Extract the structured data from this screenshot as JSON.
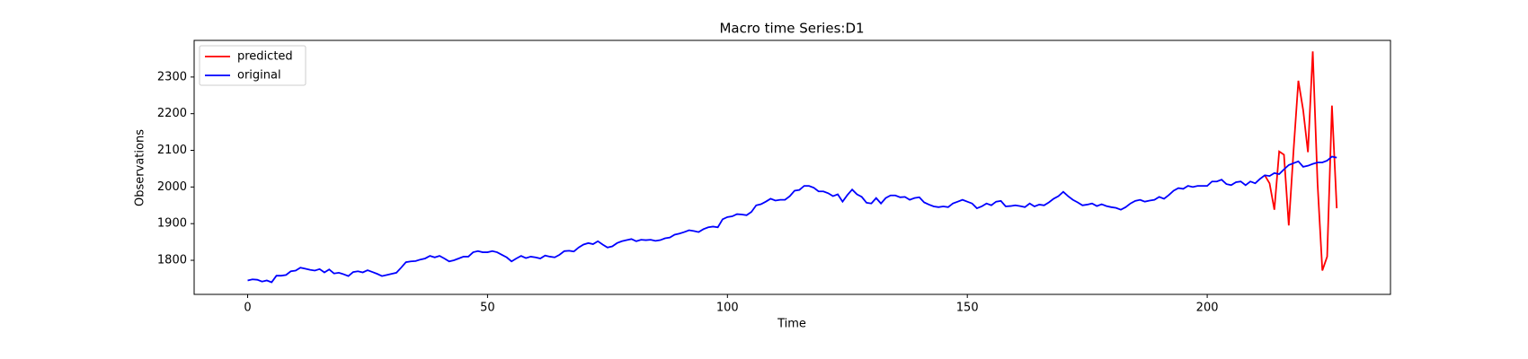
{
  "chart_data": {
    "type": "line",
    "title": "Macro time Series:D1",
    "xlabel": "Time",
    "ylabel": "Observations",
    "xlim": [
      -11.15,
      238.2
    ],
    "ylim": [
      1707,
      2400
    ],
    "xticks": [
      0,
      50,
      100,
      150,
      200
    ],
    "yticks": [
      1800,
      1900,
      2000,
      2100,
      2200,
      2300
    ],
    "legend": "upper left",
    "series": [
      {
        "name": "predicted",
        "color": "#ff0000",
        "x": [
          212,
          213,
          214,
          215,
          216,
          217,
          218,
          219,
          220,
          221,
          222,
          223,
          224,
          225,
          226,
          227
        ],
        "values": [
          2032,
          2010,
          1938,
          2097,
          2088,
          1895,
          2100,
          2290,
          2210,
          2095,
          2370,
          2010,
          1772,
          1810,
          2222,
          1942
        ]
      },
      {
        "name": "original",
        "color": "#0000ff",
        "x": [
          0,
          1,
          2,
          3,
          4,
          5,
          6,
          7,
          8,
          9,
          10,
          11,
          12,
          13,
          14,
          15,
          16,
          17,
          18,
          19,
          20,
          21,
          22,
          23,
          24,
          25,
          26,
          27,
          28,
          29,
          30,
          31,
          32,
          33,
          34,
          35,
          36,
          37,
          38,
          39,
          40,
          41,
          42,
          43,
          44,
          45,
          46,
          47,
          48,
          49,
          50,
          51,
          52,
          53,
          54,
          55,
          56,
          57,
          58,
          59,
          60,
          61,
          62,
          63,
          64,
          65,
          66,
          67,
          68,
          69,
          70,
          71,
          72,
          73,
          74,
          75,
          76,
          77,
          78,
          79,
          80,
          81,
          82,
          83,
          84,
          85,
          86,
          87,
          88,
          89,
          90,
          91,
          92,
          93,
          94,
          95,
          96,
          97,
          98,
          99,
          100,
          101,
          102,
          103,
          104,
          105,
          106,
          107,
          108,
          109,
          110,
          111,
          112,
          113,
          114,
          115,
          116,
          117,
          118,
          119,
          120,
          121,
          122,
          123,
          124,
          125,
          126,
          127,
          128,
          129,
          130,
          131,
          132,
          133,
          134,
          135,
          136,
          137,
          138,
          139,
          140,
          141,
          142,
          143,
          144,
          145,
          146,
          147,
          148,
          149,
          150,
          151,
          152,
          153,
          154,
          155,
          156,
          157,
          158,
          159,
          160,
          161,
          162,
          163,
          164,
          165,
          166,
          167,
          168,
          169,
          170,
          171,
          172,
          173,
          174,
          175,
          176,
          177,
          178,
          179,
          180,
          181,
          182,
          183,
          184,
          185,
          186,
          187,
          188,
          189,
          190,
          191,
          192,
          193,
          194,
          195,
          196,
          197,
          198,
          199,
          200,
          201,
          202,
          203,
          204,
          205,
          206,
          207,
          208,
          209,
          210,
          211,
          212,
          213,
          214,
          215,
          216,
          217,
          218,
          219,
          220,
          221,
          222,
          223,
          224,
          225,
          226,
          227
        ],
        "values": [
          1745,
          1748,
          1747,
          1742,
          1745,
          1740,
          1758,
          1758,
          1760,
          1770,
          1772,
          1780,
          1777,
          1774,
          1772,
          1776,
          1767,
          1775,
          1764,
          1766,
          1762,
          1757,
          1768,
          1770,
          1767,
          1773,
          1768,
          1763,
          1757,
          1760,
          1763,
          1766,
          1780,
          1795,
          1797,
          1798,
          1802,
          1805,
          1812,
          1808,
          1812,
          1805,
          1797,
          1800,
          1805,
          1810,
          1810,
          1822,
          1825,
          1822,
          1822,
          1825,
          1822,
          1815,
          1808,
          1797,
          1805,
          1812,
          1806,
          1810,
          1808,
          1805,
          1813,
          1810,
          1808,
          1815,
          1825,
          1826,
          1824,
          1835,
          1843,
          1847,
          1844,
          1852,
          1843,
          1835,
          1838,
          1847,
          1852,
          1855,
          1858,
          1852,
          1856,
          1855,
          1856,
          1853,
          1855,
          1860,
          1862,
          1870,
          1873,
          1877,
          1882,
          1880,
          1877,
          1885,
          1890,
          1892,
          1890,
          1912,
          1918,
          1920,
          1926,
          1925,
          1923,
          1932,
          1950,
          1953,
          1960,
          1968,
          1963,
          1965,
          1965,
          1975,
          1990,
          1992,
          2003,
          2003,
          1998,
          1988,
          1988,
          1983,
          1975,
          1980,
          1960,
          1978,
          1993,
          1980,
          1973,
          1957,
          1955,
          1970,
          1955,
          1970,
          1977,
          1977,
          1972,
          1973,
          1965,
          1970,
          1972,
          1958,
          1952,
          1947,
          1945,
          1947,
          1945,
          1955,
          1960,
          1965,
          1960,
          1955,
          1942,
          1947,
          1955,
          1950,
          1960,
          1962,
          1947,
          1948,
          1950,
          1948,
          1945,
          1955,
          1947,
          1952,
          1950,
          1958,
          1968,
          1975,
          1987,
          1975,
          1965,
          1958,
          1950,
          1952,
          1955,
          1948,
          1953,
          1948,
          1945,
          1943,
          1938,
          1945,
          1955,
          1962,
          1965,
          1960,
          1963,
          1965,
          1973,
          1968,
          1978,
          1990,
          1997,
          1995,
          2003,
          2000,
          2003,
          2003,
          2003,
          2015,
          2015,
          2020,
          2008,
          2005,
          2013,
          2015,
          2005,
          2015,
          2010,
          2022,
          2032,
          2030,
          2038,
          2035,
          2048,
          2060,
          2065,
          2070,
          2055,
          2058,
          2063,
          2067,
          2067,
          2072,
          2083,
          2080
        ]
      }
    ]
  }
}
